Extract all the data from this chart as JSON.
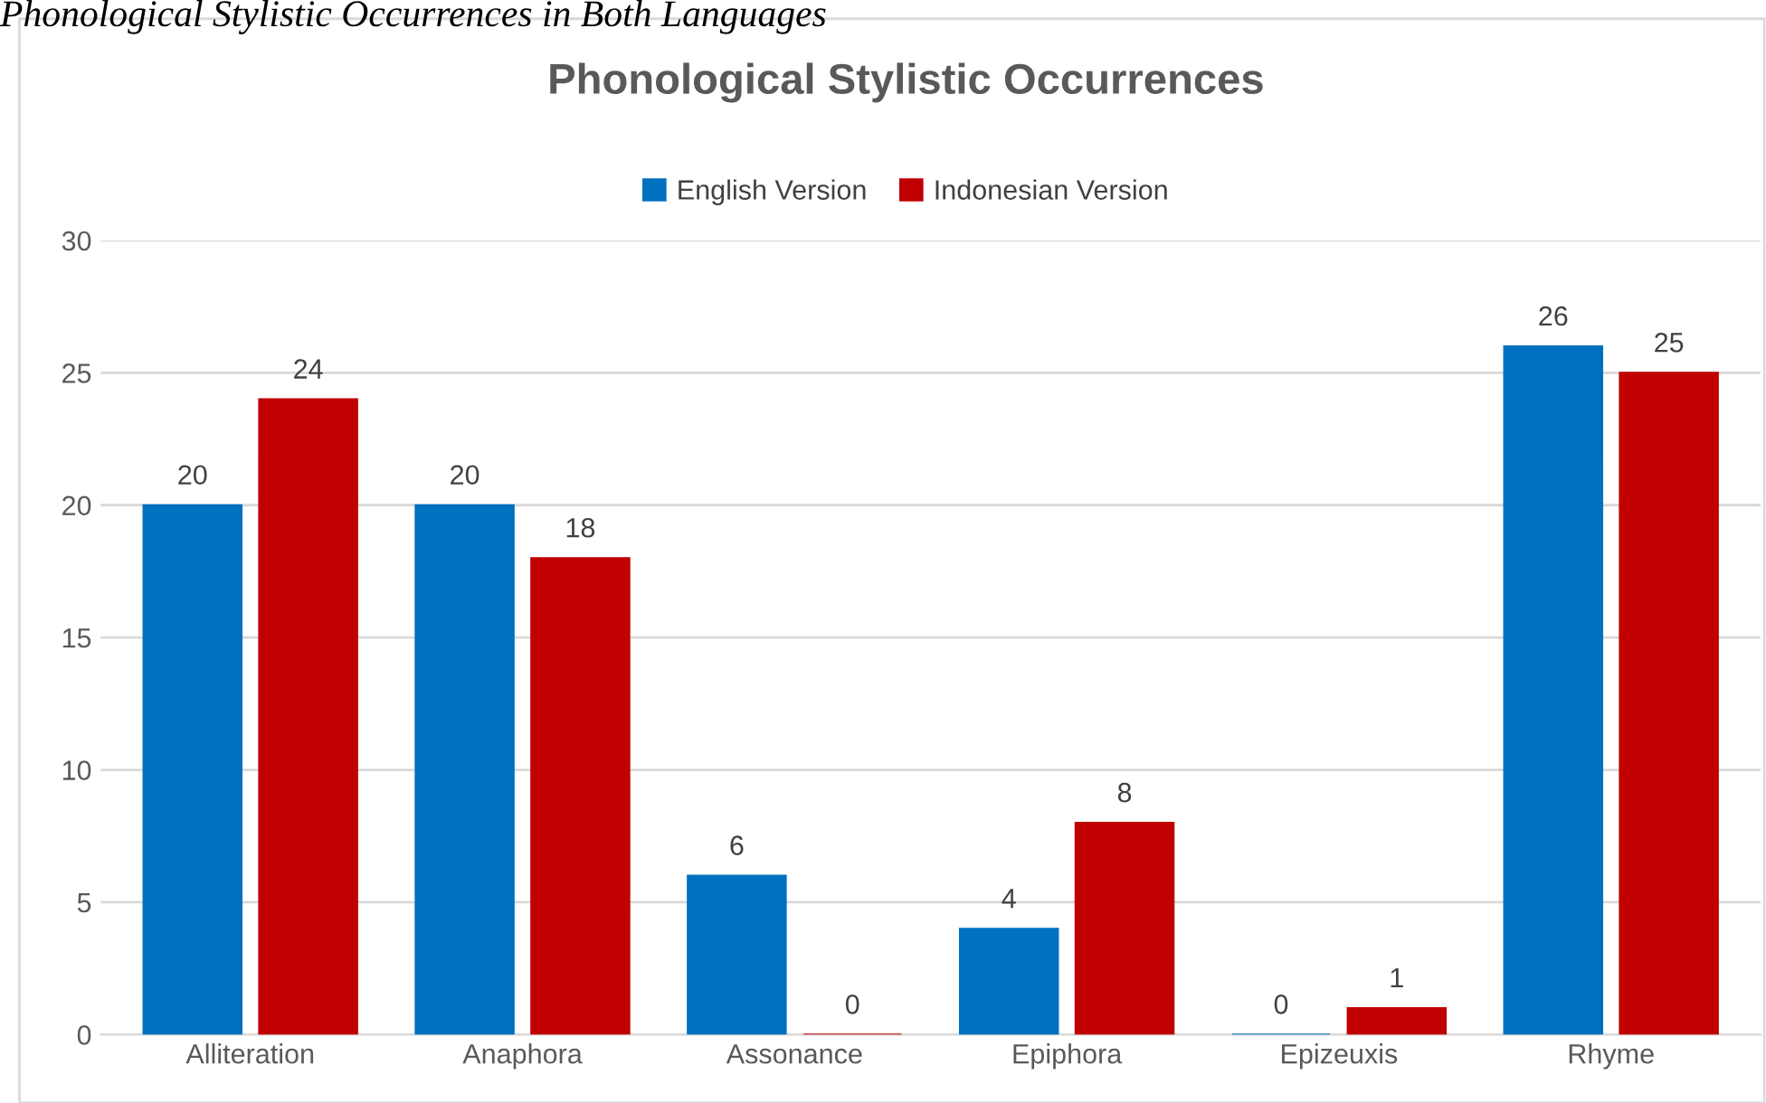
{
  "chart_data": {
    "type": "bar",
    "title": "Phonological Stylistic Occurrences",
    "annotations": [
      "Phonological Stylistic Occurrences in Both Languages"
    ],
    "categories": [
      "Alliteration",
      "Anaphora",
      "Assonance",
      "Epiphora",
      "Epizeuxis",
      "Rhyme"
    ],
    "series": [
      {
        "name": "English Version",
        "color": "#0070c0",
        "values": [
          20,
          20,
          6,
          4,
          0,
          26
        ]
      },
      {
        "name": "Indonesian Version",
        "color": "#c00000",
        "values": [
          24,
          18,
          0,
          8,
          1,
          25
        ]
      }
    ],
    "ylim": [
      0,
      30
    ],
    "yticks": [
      0,
      5,
      10,
      15,
      20,
      25,
      30
    ],
    "grid": "y",
    "legend": "top",
    "data_labels": true
  }
}
